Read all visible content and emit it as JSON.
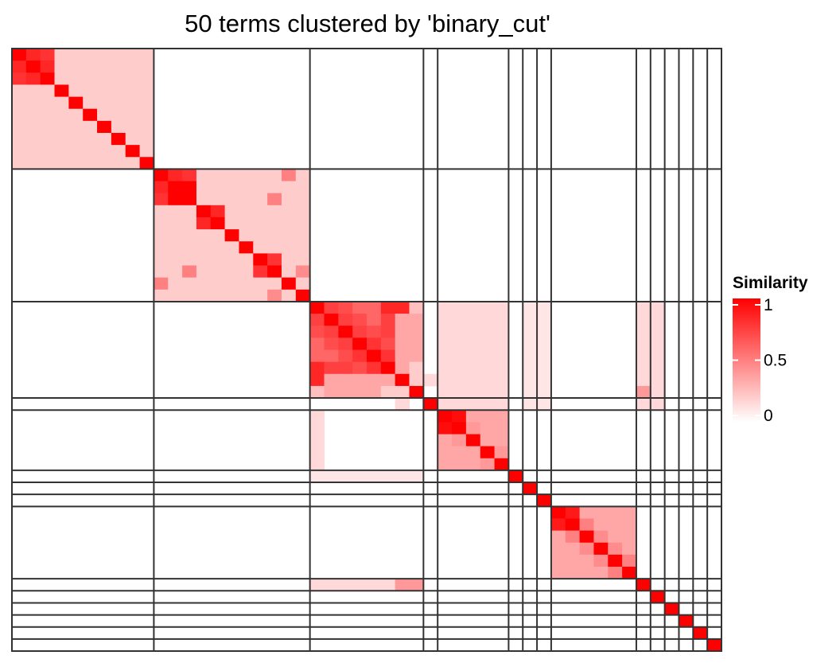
{
  "chart_data": {
    "type": "heatmap",
    "title": "50 terms clustered by 'binary_cut'",
    "n_terms": 50,
    "cluster_sizes": [
      10,
      11,
      8,
      1,
      5,
      1,
      1,
      1,
      6,
      1,
      1,
      1,
      1,
      1,
      1
    ],
    "color_scale": {
      "low": "#ffffff",
      "high": "#ff0000",
      "domain": [
        0,
        1
      ]
    },
    "within_block_similarity": [
      0.2,
      0.2,
      0.35,
      0,
      0.35,
      0,
      0,
      0,
      0.35,
      0,
      0,
      0,
      0,
      0,
      0
    ],
    "strong_pairs": [
      {
        "i": 0,
        "j": 1,
        "value": 0.85
      },
      {
        "i": 0,
        "j": 2,
        "value": 0.8
      },
      {
        "i": 1,
        "j": 2,
        "value": 0.85
      },
      {
        "i": 10,
        "j": 11,
        "value": 0.85
      },
      {
        "i": 10,
        "j": 12,
        "value": 0.8
      },
      {
        "i": 11,
        "j": 12,
        "value": 1.0
      },
      {
        "i": 13,
        "j": 14,
        "value": 0.85
      },
      {
        "i": 17,
        "j": 18,
        "value": 0.8
      },
      {
        "i": 21,
        "j": 22,
        "value": 0.75
      },
      {
        "i": 21,
        "j": 23,
        "value": 0.7
      },
      {
        "i": 21,
        "j": 24,
        "value": 0.6
      },
      {
        "i": 21,
        "j": 25,
        "value": 0.6
      },
      {
        "i": 21,
        "j": 26,
        "value": 0.85
      },
      {
        "i": 22,
        "j": 23,
        "value": 0.75
      },
      {
        "i": 22,
        "j": 24,
        "value": 0.7
      },
      {
        "i": 22,
        "j": 25,
        "value": 0.6
      },
      {
        "i": 22,
        "j": 26,
        "value": 0.75
      },
      {
        "i": 23,
        "j": 24,
        "value": 0.75
      },
      {
        "i": 23,
        "j": 25,
        "value": 0.7
      },
      {
        "i": 23,
        "j": 26,
        "value": 0.75
      },
      {
        "i": 24,
        "j": 25,
        "value": 0.8
      },
      {
        "i": 24,
        "j": 26,
        "value": 0.7
      },
      {
        "i": 21,
        "j": 27,
        "value": 0.85
      },
      {
        "i": 25,
        "j": 26,
        "value": 0.8
      },
      {
        "i": 27,
        "j": 28,
        "value": 0.2
      },
      {
        "i": 27,
        "j": 29,
        "value": 0.15
      },
      {
        "i": 21,
        "j": 28,
        "value": 0.25
      },
      {
        "i": 26,
        "j": 28,
        "value": 0.2
      },
      {
        "i": 30,
        "j": 31,
        "value": 0.95
      },
      {
        "i": 31,
        "j": 32,
        "value": 0.4
      },
      {
        "i": 32,
        "j": 33,
        "value": 0.35
      },
      {
        "i": 33,
        "j": 34,
        "value": 0.4
      },
      {
        "i": 38,
        "j": 39,
        "value": 0.9
      },
      {
        "i": 39,
        "j": 40,
        "value": 0.5
      },
      {
        "i": 40,
        "j": 41,
        "value": 0.45
      },
      {
        "i": 41,
        "j": 42,
        "value": 0.45
      },
      {
        "i": 42,
        "j": 43,
        "value": 0.5
      },
      {
        "i": 18,
        "j": 12,
        "value": 0.5
      },
      {
        "i": 19,
        "j": 10,
        "value": 0.5
      },
      {
        "i": 20,
        "j": 18,
        "value": 0.45
      }
    ],
    "cross_block_similarity": [
      {
        "rows": [
          21,
          29
        ],
        "cols": [
          30,
          34
        ],
        "value": 0.15
      },
      {
        "rows": [
          21,
          29
        ],
        "cols": [
          36,
          37
        ],
        "value": 0.1
      },
      {
        "rows": [
          21,
          29
        ],
        "cols": [
          44,
          45
        ],
        "value": 0.15
      },
      {
        "rows": [
          35,
          35
        ],
        "cols": [
          21,
          28
        ],
        "value": 0.1
      },
      {
        "rows": [
          44,
          44
        ],
        "cols": [
          21,
          28
        ],
        "value": 0.15
      },
      {
        "rows": [
          44,
          44
        ],
        "cols": [
          27,
          28
        ],
        "value": 0.4
      },
      {
        "rows": [
          28,
          28
        ],
        "cols": [
          44,
          44
        ],
        "value": 0.4
      },
      {
        "rows": [
          30,
          34
        ],
        "cols": [
          21,
          21
        ],
        "value": 0.15
      }
    ],
    "legend": {
      "title": "Similarity",
      "ticks": [
        {
          "label": "1",
          "value": 1
        },
        {
          "label": "0.5",
          "value": 0.5
        },
        {
          "label": "0",
          "value": 0
        }
      ]
    },
    "grid_lines": true
  }
}
